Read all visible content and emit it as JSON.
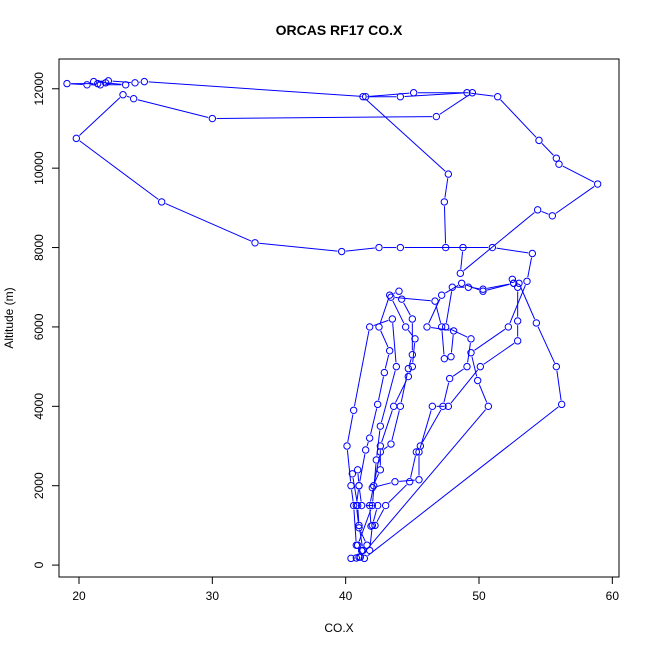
{
  "chart_data": {
    "type": "line",
    "title": "ORCAS RF17 CO.X",
    "xlabel": "CO.X",
    "ylabel": "Altitude (m)",
    "xlim": [
      18.5,
      60.5
    ],
    "ylim": [
      -300,
      12750
    ],
    "x_ticks": [
      20,
      30,
      40,
      50,
      60
    ],
    "y_ticks": [
      0,
      2000,
      4000,
      6000,
      8000,
      10000,
      12000
    ],
    "series_color": "#0000ff",
    "marker": "open-circle",
    "grid": false,
    "series": [
      {
        "points": [
          [
            40.4,
            170
          ],
          [
            40.8,
            180
          ],
          [
            41.0,
            200
          ],
          [
            41.2,
            360
          ],
          [
            41.6,
            500
          ],
          [
            41.0,
            940
          ],
          [
            40.8,
            1500
          ],
          [
            41.0,
            2000
          ],
          [
            40.9,
            2400
          ],
          [
            40.5,
            2300
          ],
          [
            40.9,
            1500
          ],
          [
            41.0,
            1000
          ],
          [
            41.3,
            370
          ],
          [
            41.8,
            370
          ],
          [
            42.0,
            1000
          ],
          [
            42.4,
            1500
          ],
          [
            41.2,
            1500
          ],
          [
            41.0,
            2000
          ],
          [
            41.5,
            2900
          ],
          [
            41.8,
            3200
          ],
          [
            42.4,
            4050
          ],
          [
            42.9,
            4850
          ],
          [
            43.3,
            5400
          ],
          [
            42.5,
            6000
          ],
          [
            43.3,
            6800
          ],
          [
            44.0,
            6900
          ],
          [
            44.2,
            6700
          ],
          [
            45.0,
            6200
          ],
          [
            45.0,
            5300
          ],
          [
            44.7,
            4950
          ],
          [
            44.1,
            4000
          ],
          [
            43.4,
            3050
          ],
          [
            42.6,
            2850
          ],
          [
            42.1,
            2000
          ],
          [
            41.8,
            1500
          ],
          [
            41.9,
            980
          ],
          [
            42.2,
            1000
          ],
          [
            43.0,
            1500
          ],
          [
            44.8,
            2100
          ],
          [
            45.3,
            2850
          ],
          [
            45.6,
            3000
          ],
          [
            47.3,
            4000
          ],
          [
            47.8,
            4700
          ],
          [
            49.1,
            5000
          ],
          [
            49.4,
            5700
          ],
          [
            47.5,
            6000
          ],
          [
            48.0,
            7000
          ],
          [
            49.2,
            7000
          ],
          [
            50.3,
            6950
          ],
          [
            52.6,
            7100
          ],
          [
            52.9,
            7000
          ],
          [
            52.9,
            6150
          ],
          [
            52.9,
            5650
          ],
          [
            50.1,
            5000
          ],
          [
            47.7,
            4000
          ],
          [
            46.5,
            4000
          ],
          [
            45.5,
            2850
          ],
          [
            45.5,
            2150
          ],
          [
            43.7,
            2100
          ],
          [
            42.0,
            1950
          ],
          [
            42.6,
            2400
          ],
          [
            42.6,
            3000
          ],
          [
            43.6,
            4000
          ],
          [
            44.7,
            4750
          ],
          [
            45.0,
            5000
          ],
          [
            45.2,
            5700
          ],
          [
            44.5,
            6000
          ],
          [
            43.4,
            6750
          ],
          [
            46.7,
            6650
          ],
          [
            47.2,
            6000
          ],
          [
            47.4,
            5200
          ],
          [
            47.9,
            5250
          ],
          [
            48.1,
            5900
          ],
          [
            46.1,
            6000
          ],
          [
            47.2,
            6800
          ],
          [
            48.7,
            7100
          ],
          [
            50.3,
            6900
          ],
          [
            52.6,
            7100
          ],
          [
            52.5,
            7200
          ],
          [
            53.0,
            7100
          ],
          [
            54.3,
            6100
          ],
          [
            55.8,
            5000
          ],
          [
            56.2,
            4050
          ],
          [
            41.4,
            170
          ],
          [
            40.8,
            500
          ],
          [
            40.6,
            1500
          ],
          [
            40.4,
            2000
          ],
          [
            40.1,
            3000
          ],
          [
            40.6,
            3900
          ],
          [
            41.8,
            6000
          ],
          [
            43.5,
            6200
          ],
          [
            43.8,
            5000
          ],
          [
            42.6,
            3500
          ],
          [
            42.3,
            2650
          ],
          [
            42.0,
            1500
          ],
          [
            40.9,
            500
          ],
          [
            41.1,
            200
          ],
          [
            50.7,
            4000
          ],
          [
            49.9,
            4650
          ],
          [
            49.4,
            5350
          ],
          [
            52.2,
            6000
          ],
          [
            53.6,
            7150
          ],
          [
            54.0,
            7850
          ],
          [
            51.0,
            8000
          ],
          [
            47.5,
            8000
          ],
          [
            47.4,
            9150
          ],
          [
            47.7,
            9850
          ],
          [
            41.3,
            11800
          ],
          [
            44.1,
            11800
          ],
          [
            49.1,
            11900
          ],
          [
            51.4,
            11800
          ],
          [
            54.5,
            10700
          ],
          [
            55.8,
            10250
          ],
          [
            56.0,
            10100
          ],
          [
            58.9,
            9600
          ],
          [
            55.5,
            8800
          ],
          [
            54.4,
            8950
          ],
          [
            48.6,
            7350
          ],
          [
            48.8,
            8000
          ],
          [
            44.1,
            8000
          ],
          [
            42.5,
            8000
          ],
          [
            39.7,
            7900
          ],
          [
            33.2,
            8120
          ],
          [
            26.2,
            9150
          ],
          [
            19.8,
            10750
          ],
          [
            23.3,
            11850
          ],
          [
            24.1,
            11750
          ],
          [
            30.0,
            11250
          ],
          [
            46.8,
            11300
          ],
          [
            49.5,
            11900
          ],
          [
            45.1,
            11900
          ],
          [
            41.5,
            11800
          ],
          [
            24.9,
            12180
          ],
          [
            24.2,
            12150
          ],
          [
            22.2,
            12200
          ],
          [
            21.1,
            12180
          ],
          [
            23.5,
            12100
          ],
          [
            21.6,
            12100
          ],
          [
            20.6,
            12100
          ],
          [
            19.1,
            12130
          ],
          [
            21.4,
            12130
          ],
          [
            22.0,
            12150
          ]
        ]
      }
    ]
  }
}
